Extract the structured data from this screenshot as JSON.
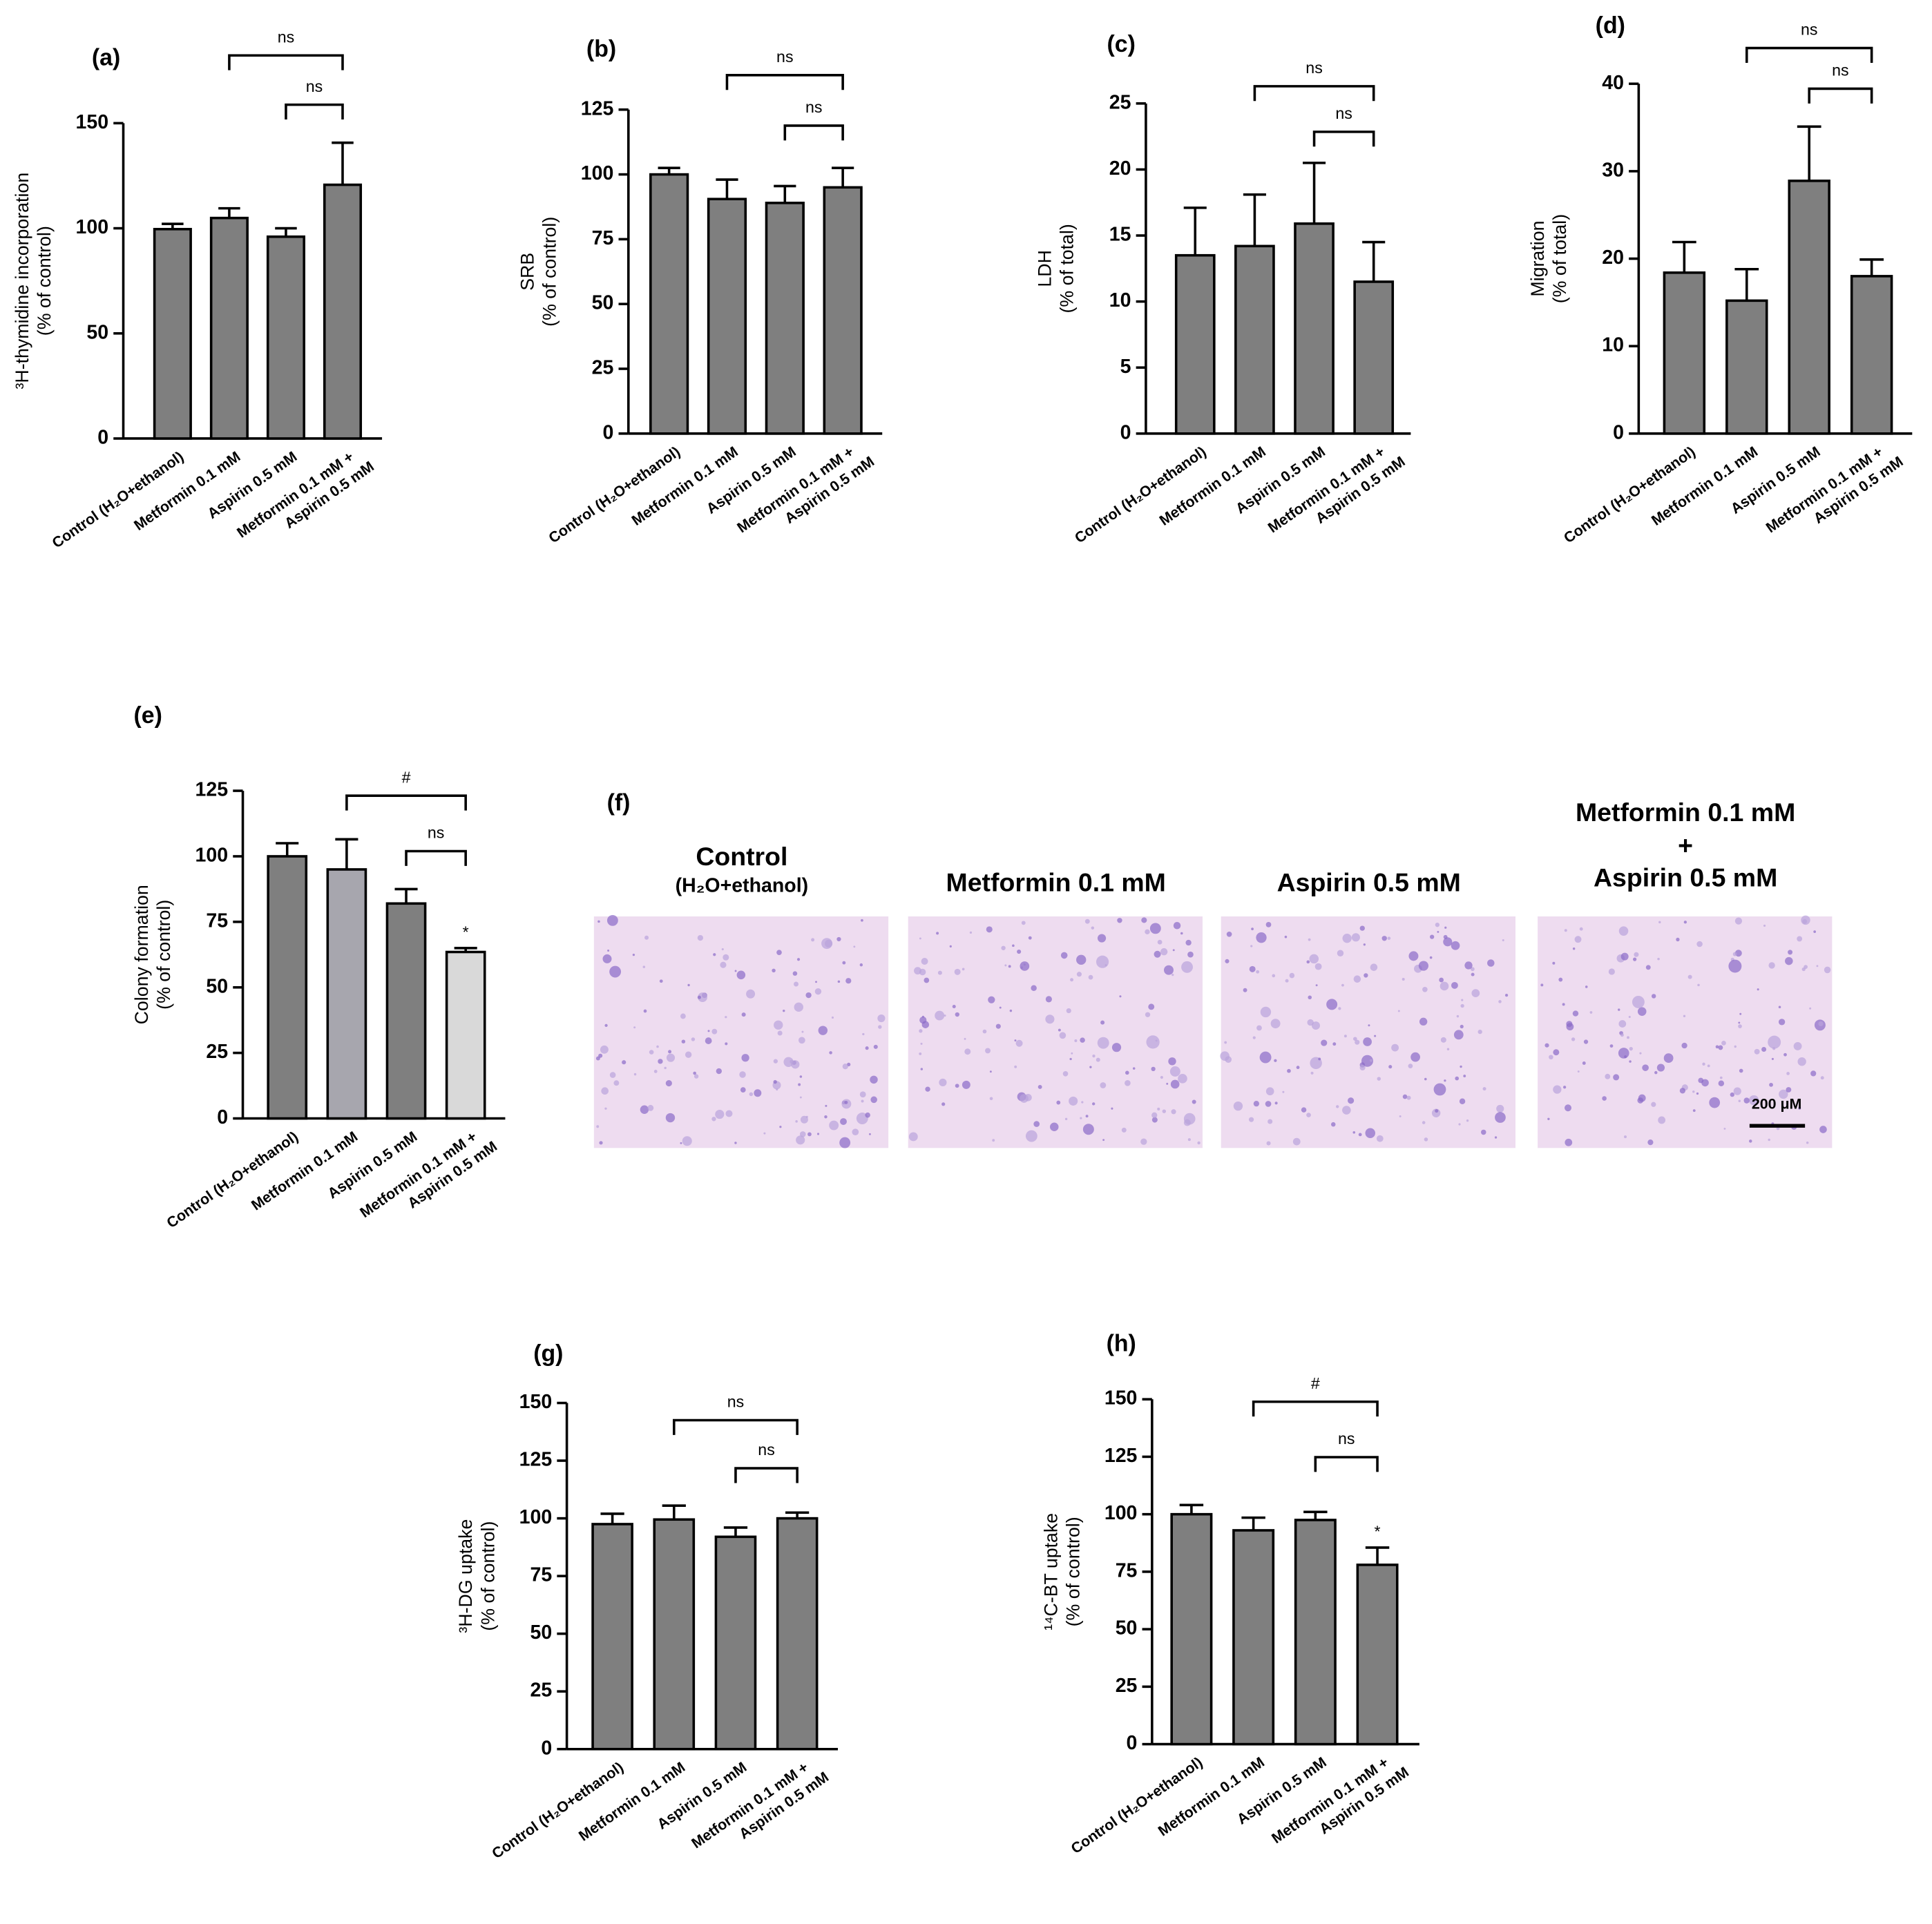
{
  "chart_data": [
    {
      "type": "bar",
      "label": "(a)",
      "ylabel": [
        "³H-thymidine incorporation",
        "(% of control)"
      ],
      "categories": [
        [
          "Control (H₂O+ethanol)"
        ],
        [
          "Metformin 0.1 mM"
        ],
        [
          "Aspirin 0.5 mM"
        ],
        [
          "Metformin 0.1 mM +",
          "Aspirin 0.5 mM"
        ]
      ],
      "values": [
        99.6,
        104.9,
        96,
        120.7
      ],
      "errors": [
        2.5,
        4.6,
        4,
        20
      ],
      "color": "#7f7f7f",
      "ylim": [
        0,
        150
      ],
      "yticks": [
        0,
        50,
        100,
        150
      ],
      "brackets": [
        {
          "groups": [
            1,
            3
          ],
          "label": "ns"
        },
        {
          "groups": [
            2,
            3
          ],
          "label": "ns"
        }
      ]
    },
    {
      "type": "bar",
      "label": "(b)",
      "ylabel": [
        "SRB",
        "(% of control)"
      ],
      "categories": [
        [
          "Control (H₂O+ethanol)"
        ],
        [
          "Metformin 0.1 mM"
        ],
        [
          "Aspirin 0.5 mM"
        ],
        [
          "Metformin 0.1 mM +",
          "Aspirin 0.5 mM"
        ]
      ],
      "values": [
        100,
        90.5,
        89,
        95
      ],
      "errors": [
        2.5,
        7.5,
        6.5,
        7.5
      ],
      "color": "#7f7f7f",
      "ylim": [
        0,
        125
      ],
      "yticks": [
        0,
        25,
        50,
        75,
        100,
        125
      ],
      "brackets": [
        {
          "groups": [
            1,
            3
          ],
          "label": "ns"
        },
        {
          "groups": [
            2,
            3
          ],
          "label": "ns"
        }
      ]
    },
    {
      "type": "bar",
      "label": "(c)",
      "ylabel": [
        "LDH",
        "(% of total)"
      ],
      "categories": [
        [
          "Control (H₂O+ethanol)"
        ],
        [
          "Metformin 0.1 mM"
        ],
        [
          "Aspirin 0.5 mM"
        ],
        [
          "Metformin 0.1 mM +",
          "Aspirin 0.5 mM"
        ]
      ],
      "values": [
        13.5,
        14.2,
        15.9,
        11.5
      ],
      "errors": [
        3.6,
        3.9,
        4.6,
        3
      ],
      "color": "#7f7f7f",
      "ylim": [
        0,
        25
      ],
      "yticks": [
        0,
        5,
        10,
        15,
        20,
        25
      ],
      "brackets": [
        {
          "groups": [
            1,
            3
          ],
          "label": "ns"
        },
        {
          "groups": [
            2,
            3
          ],
          "label": "ns"
        }
      ]
    },
    {
      "type": "bar",
      "label": "(d)",
      "ylabel": [
        "Migration",
        "(% of total)"
      ],
      "categories": [
        [
          "Control (H₂O+ethanol)"
        ],
        [
          "Metformin 0.1 mM"
        ],
        [
          "Aspirin 0.5 mM"
        ],
        [
          "Metformin 0.1 mM +",
          "Aspirin 0.5 mM"
        ]
      ],
      "values": [
        18.4,
        15.2,
        28.9,
        18
      ],
      "errors": [
        3.5,
        3.6,
        6.2,
        1.9
      ],
      "color": "#7f7f7f",
      "ylim": [
        0,
        40
      ],
      "yticks": [
        0,
        10,
        20,
        30,
        40
      ],
      "brackets": [
        {
          "groups": [
            1,
            3
          ],
          "label": "ns"
        },
        {
          "groups": [
            2,
            3
          ],
          "label": "ns"
        }
      ]
    },
    {
      "type": "bar",
      "label": "(e)",
      "ylabel": [
        "Colony formation",
        "(% of control)"
      ],
      "categories": [
        [
          "Control (H₂O+ethanol)"
        ],
        [
          "Metformin 0.1 mM"
        ],
        [
          "Aspirin 0.5 mM"
        ],
        [
          "Metformin 0.1 mM +",
          "Aspirin 0.5 mM"
        ]
      ],
      "values": [
        100,
        95,
        82,
        63.5
      ],
      "errors": [
        5,
        11.5,
        5.5,
        1.5
      ],
      "color": "#7f7f7f",
      "colors": [
        "#7f7f7f",
        "#a7a6ae",
        "#7f7f7f",
        "#d9d9d9"
      ],
      "annotations": [
        null,
        null,
        null,
        "*"
      ],
      "ylim": [
        0,
        125
      ],
      "yticks": [
        0,
        25,
        50,
        75,
        100,
        125
      ],
      "brackets": [
        {
          "groups": [
            1,
            3
          ],
          "label": "#"
        },
        {
          "groups": [
            2,
            3
          ],
          "label": "ns"
        }
      ]
    },
    {
      "type": "bar",
      "label": "(g)",
      "ylabel": [
        "³H-DG uptake",
        "(% of control)"
      ],
      "categories": [
        [
          "Control (H₂O+ethanol)"
        ],
        [
          "Metformin 0.1 mM"
        ],
        [
          "Aspirin 0.5 mM"
        ],
        [
          "Metformin 0.1 mM +",
          "Aspirin 0.5 mM"
        ]
      ],
      "values": [
        97.5,
        99.5,
        92,
        100
      ],
      "errors": [
        4.5,
        6,
        4,
        2.5
      ],
      "color": "#7f7f7f",
      "ylim": [
        0,
        150
      ],
      "yticks": [
        0,
        25,
        50,
        75,
        100,
        125,
        150
      ],
      "brackets": [
        {
          "groups": [
            1,
            3
          ],
          "label": "ns"
        },
        {
          "groups": [
            2,
            3
          ],
          "label": "ns"
        }
      ]
    },
    {
      "type": "bar",
      "label": "(h)",
      "ylabel": [
        "¹⁴C-BT uptake",
        "(% of control)"
      ],
      "categories": [
        [
          "Control (H₂O+ethanol)"
        ],
        [
          "Metformin 0.1 mM"
        ],
        [
          "Aspirin 0.5 mM"
        ],
        [
          "Metformin 0.1 mM +",
          "Aspirin 0.5 mM"
        ]
      ],
      "values": [
        100,
        93,
        97.5,
        78
      ],
      "errors": [
        4,
        5.5,
        3.5,
        7.5
      ],
      "color": "#7f7f7f",
      "annotations": [
        null,
        null,
        null,
        "*"
      ],
      "ylim": [
        0,
        150
      ],
      "yticks": [
        0,
        25,
        50,
        75,
        100,
        125,
        150
      ],
      "brackets": [
        {
          "groups": [
            1,
            3
          ],
          "label": "#"
        },
        {
          "groups": [
            2,
            3
          ],
          "label": "ns"
        }
      ]
    }
  ],
  "image_panel": {
    "label": "(f)",
    "titles": [
      [
        "Control",
        "(H₂O+ethanol)"
      ],
      [
        "Metformin 0.1 mM"
      ],
      [
        "Aspirin 0.5 mM"
      ],
      [
        "Metformin 0.1 mM",
        "+",
        "Aspirin 0.5 mM"
      ]
    ],
    "scale_bar": "200 μM"
  }
}
